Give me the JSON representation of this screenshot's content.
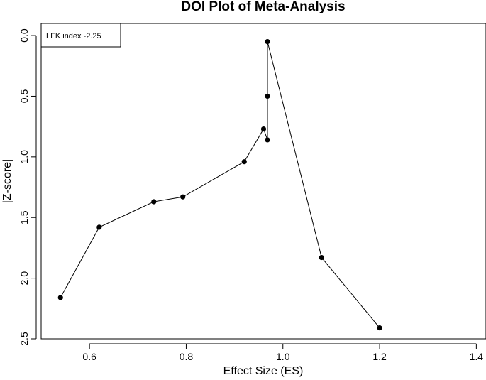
{
  "chart_data": {
    "type": "line",
    "title": "DOI Plot of Meta-Analysis",
    "xlabel": "Effect Size (ES)",
    "ylabel": "|Z-score|",
    "xlim": [
      0.5,
      1.42
    ],
    "ylim": [
      -0.1,
      2.5
    ],
    "y_reversed": true,
    "xticks": [
      0.6,
      0.8,
      1.0,
      1.2,
      1.4
    ],
    "xtick_labels": [
      "0.6",
      "0.8",
      "1.0",
      "1.2",
      "1.4"
    ],
    "yticks": [
      0.0,
      0.5,
      1.0,
      1.5,
      2.0,
      2.5
    ],
    "ytick_labels": [
      "0.0",
      "0.5",
      "1.0",
      "1.5",
      "2.0",
      "2.5"
    ],
    "grid": false,
    "legend": {
      "position": "top-left",
      "text": "LFK index -2.25"
    },
    "series": [
      {
        "name": "DOI",
        "x": [
          0.54,
          0.62,
          0.733,
          0.793,
          0.92,
          0.96,
          0.968,
          0.968,
          0.968,
          1.08,
          1.2
        ],
        "y": [
          2.16,
          1.58,
          1.37,
          1.33,
          1.04,
          0.77,
          0.86,
          0.5,
          0.05,
          1.83,
          2.41
        ]
      }
    ]
  }
}
